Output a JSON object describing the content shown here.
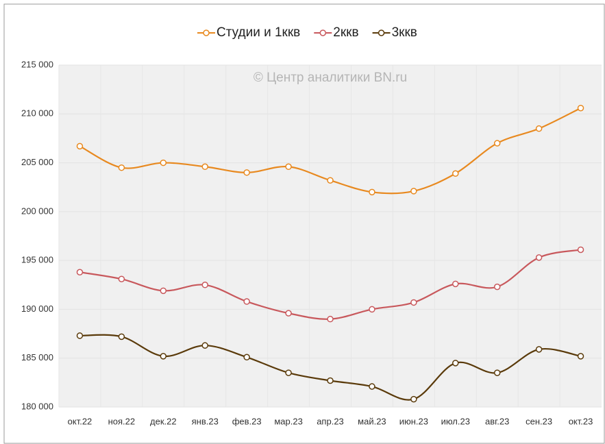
{
  "chart_data": {
    "type": "line",
    "annotations": [
      "© Центр аналитики BN.ru"
    ],
    "categories": [
      "окт.22",
      "ноя.22",
      "дек.22",
      "янв.23",
      "фев.23",
      "мар.23",
      "апр.23",
      "май.23",
      "июн.23",
      "июл.23",
      "авг.23",
      "сен.23",
      "окт.23"
    ],
    "series": [
      {
        "name": "Студии и 1ккв",
        "color": "#e8891f",
        "values": [
          206700,
          204500,
          205000,
          204600,
          204000,
          204600,
          203200,
          202000,
          202100,
          203900,
          207000,
          208500,
          210600
        ]
      },
      {
        "name": "2ккв",
        "color": "#c8585c",
        "values": [
          193800,
          193100,
          191900,
          192500,
          190800,
          189600,
          189000,
          190000,
          190700,
          192600,
          192300,
          195300,
          196100
        ]
      },
      {
        "name": "3ккв",
        "color": "#5a3a0a",
        "values": [
          187300,
          187200,
          185200,
          186300,
          185100,
          183500,
          182700,
          182100,
          180800,
          184500,
          183500,
          185900,
          185200
        ]
      }
    ],
    "ylim": [
      180000,
      215000
    ],
    "yticks": [
      {
        "value": 180000,
        "label": "180 000"
      },
      {
        "value": 185000,
        "label": "185 000"
      },
      {
        "value": 190000,
        "label": "190 000"
      },
      {
        "value": 195000,
        "label": "195 000"
      },
      {
        "value": 200000,
        "label": "200 000"
      },
      {
        "value": 205000,
        "label": "205 000"
      },
      {
        "value": 210000,
        "label": "210 000"
      },
      {
        "value": 215000,
        "label": "215 000"
      }
    ],
    "legend": "top",
    "grid": true
  }
}
